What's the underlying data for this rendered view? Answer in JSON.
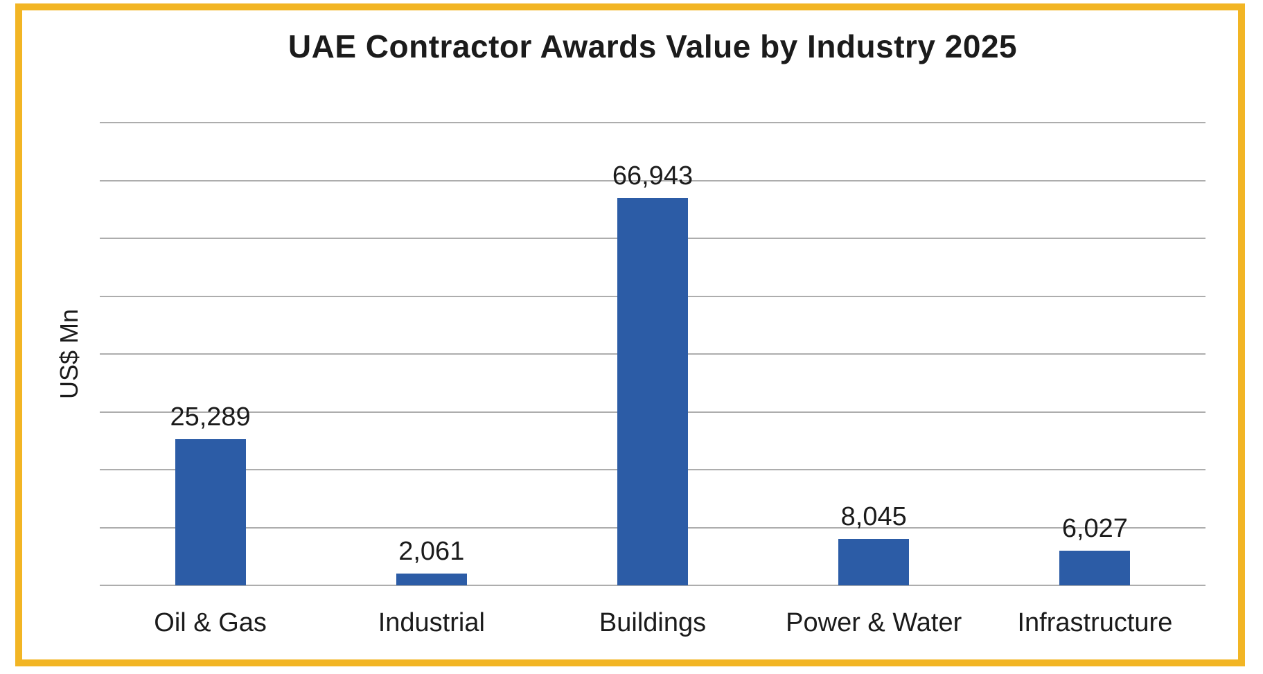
{
  "theme": {
    "border_color": "#F2B524",
    "background_color": "#FFFFFF",
    "bar_color": "#2C5CA6",
    "gridline_color": "#ADADAD",
    "text_color": "#1B1B1B"
  },
  "chart_data": {
    "type": "bar",
    "title": "UAE Contractor Awards Value by Industry 2025",
    "xlabel": "",
    "ylabel": "US$ Mn",
    "categories": [
      "Oil & Gas",
      "Industrial",
      "Buildings",
      "Power & Water",
      "Infrastructure"
    ],
    "values": [
      25289,
      2061,
      66943,
      8045,
      6027
    ],
    "value_labels": [
      "25,289",
      "2,061",
      "66,943",
      "8,045",
      "6,027"
    ],
    "ylim": [
      0,
      80000
    ],
    "gridline_interval": 10000,
    "grid": true,
    "legend_position": "none",
    "y_tick_labels_visible": false
  }
}
